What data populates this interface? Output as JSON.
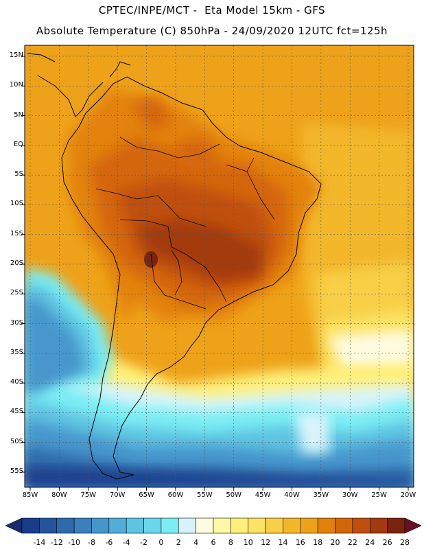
{
  "header": {
    "line1": "CPTEC/INPE/MCT -  Eta Model 15km - GFS",
    "line2": "Absolute Temperature (C) 850hPa - 24/09/2020 12UTC fct=125h"
  },
  "map": {
    "lat_ticks": [
      {
        "label": "15N",
        "lat": 15
      },
      {
        "label": "10N",
        "lat": 10
      },
      {
        "label": "5N",
        "lat": 5
      },
      {
        "label": "EQ",
        "lat": 0
      },
      {
        "label": "5S",
        "lat": -5
      },
      {
        "label": "10S",
        "lat": -10
      },
      {
        "label": "15S",
        "lat": -15
      },
      {
        "label": "20S",
        "lat": -20
      },
      {
        "label": "25S",
        "lat": -25
      },
      {
        "label": "30S",
        "lat": -30
      },
      {
        "label": "35S",
        "lat": -35
      },
      {
        "label": "40S",
        "lat": -40
      },
      {
        "label": "45S",
        "lat": -45
      },
      {
        "label": "50S",
        "lat": -50
      },
      {
        "label": "55S",
        "lat": -55
      }
    ],
    "lon_ticks": [
      {
        "label": "85W",
        "lon": -85
      },
      {
        "label": "80W",
        "lon": -80
      },
      {
        "label": "75W",
        "lon": -75
      },
      {
        "label": "70W",
        "lon": -70
      },
      {
        "label": "65W",
        "lon": -65
      },
      {
        "label": "60W",
        "lon": -60
      },
      {
        "label": "55W",
        "lon": -55
      },
      {
        "label": "50W",
        "lon": -50
      },
      {
        "label": "45W",
        "lon": -45
      },
      {
        "label": "40W",
        "lon": -40
      },
      {
        "label": "35W",
        "lon": -35
      },
      {
        "label": "30W",
        "lon": -30
      },
      {
        "label": "25W",
        "lon": -25
      },
      {
        "label": "20W",
        "lon": -20
      }
    ]
  },
  "colorbar": {
    "labels": [
      "-14",
      "-12",
      "-10",
      "-8",
      "-6",
      "-4",
      "-2",
      "0",
      "2",
      "4",
      "6",
      "8",
      "10",
      "12",
      "14",
      "16",
      "18",
      "20",
      "22",
      "24",
      "26",
      "28"
    ],
    "colors": [
      "#1a3c8c",
      "#24549c",
      "#2f6aac",
      "#3b80bc",
      "#4696cc",
      "#52aed8",
      "#5ec4e2",
      "#6ad8ec",
      "#7aeef4",
      "#d8f4fb",
      "#fffbe0",
      "#fff8a4",
      "#fff07c",
      "#fde264",
      "#f8cf46",
      "#f3b72c",
      "#eea219",
      "#e3820b",
      "#d4660a",
      "#c04f0e",
      "#a33a0e",
      "#7a2410"
    ],
    "arrow_low": "#162e6e",
    "arrow_high": "#6a0f25"
  }
}
